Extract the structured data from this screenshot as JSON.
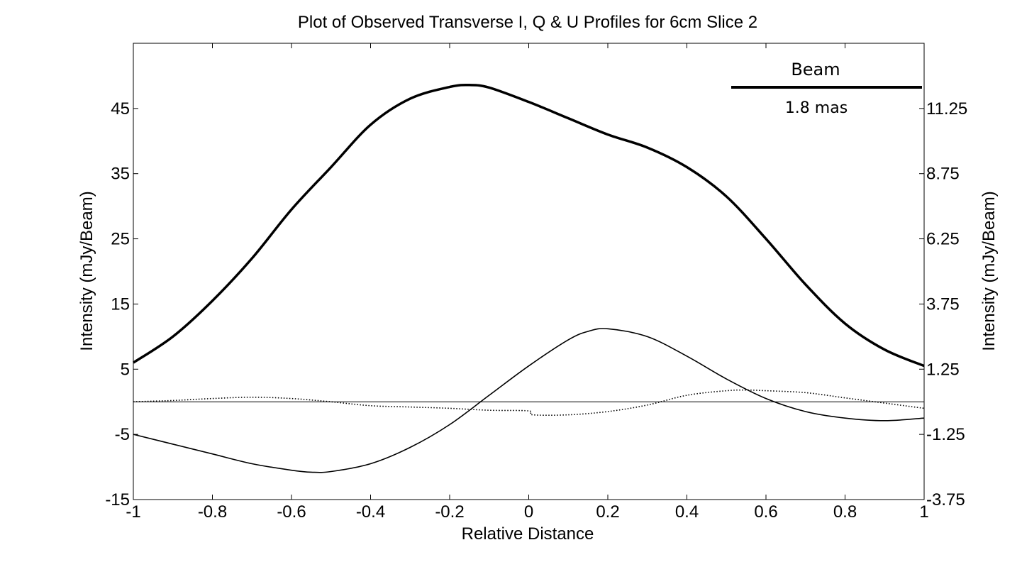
{
  "chart_data": {
    "type": "line",
    "title": "Plot of Observed Transverse I, Q & U Profiles for 6cm Slice 2",
    "xlabel": "Relative Distance",
    "ylabel": "Intensity (mJy/Beam)",
    "y2label": "Intensity (mJy/Beam)",
    "xlim": [
      -1,
      1
    ],
    "ylim": [
      -15,
      55
    ],
    "y2lim": [
      -3.75,
      13.75
    ],
    "x_ticks": [
      "-1",
      "-0.8",
      "-0.6",
      "-0.4",
      "-0.2",
      "0",
      "0.2",
      "0.4",
      "0.6",
      "0.8",
      "1"
    ],
    "y_ticks": [
      "-15",
      "-5",
      "5",
      "15",
      "25",
      "35",
      "45"
    ],
    "y2_ticks": [
      "-3.75",
      "-1.25",
      "1.25",
      "3.75",
      "6.25",
      "8.75",
      "11.25"
    ],
    "grid": false,
    "zero_line": true,
    "beam_label": "Beam",
    "beam_size_label": "1.8 mas",
    "series": [
      {
        "style": "thick-solid",
        "color": "#000000",
        "x": [
          -1,
          -0.9,
          -0.8,
          -0.7,
          -0.6,
          -0.5,
          -0.4,
          -0.3,
          -0.2,
          -0.15,
          -0.1,
          0,
          0.1,
          0.2,
          0.3,
          0.4,
          0.5,
          0.6,
          0.7,
          0.8,
          0.9,
          1
        ],
        "y": [
          6,
          10,
          15.5,
          22,
          29.5,
          36,
          42.5,
          46.5,
          48.3,
          48.6,
          48.2,
          46,
          43.5,
          41,
          39,
          36,
          31.5,
          25,
          18,
          12,
          8,
          5.5
        ]
      },
      {
        "style": "thin-solid",
        "color": "#000000",
        "x": [
          -1,
          -0.9,
          -0.8,
          -0.7,
          -0.6,
          -0.55,
          -0.5,
          -0.4,
          -0.3,
          -0.2,
          -0.1,
          0,
          0.1,
          0.15,
          0.2,
          0.3,
          0.4,
          0.5,
          0.6,
          0.7,
          0.8,
          0.9,
          1
        ],
        "y": [
          -5,
          -6.5,
          -8,
          -9.5,
          -10.5,
          -10.8,
          -10.7,
          -9.5,
          -7,
          -3.5,
          1,
          5.5,
          9.5,
          10.8,
          11.2,
          10,
          7,
          3.5,
          0.5,
          -1.5,
          -2.5,
          -2.9,
          -2.5
        ],
        "points_only": false
      },
      {
        "style": "dotted",
        "color": "#000000",
        "x": [
          -1,
          -0.9,
          -0.8,
          -0.7,
          -0.6,
          -0.5,
          -0.4,
          -0.3,
          -0.2,
          -0.1,
          0,
          0.01,
          0.1,
          0.2,
          0.3,
          0.4,
          0.5,
          0.55,
          0.6,
          0.7,
          0.8,
          0.9,
          1
        ],
        "y": [
          0,
          0.2,
          0.5,
          0.7,
          0.5,
          0,
          -0.6,
          -0.8,
          -1,
          -1.3,
          -1.4,
          -2,
          -2,
          -1.5,
          -0.5,
          1,
          1.7,
          1.8,
          1.7,
          1.4,
          0.6,
          -0.2,
          -1
        ]
      }
    ]
  }
}
